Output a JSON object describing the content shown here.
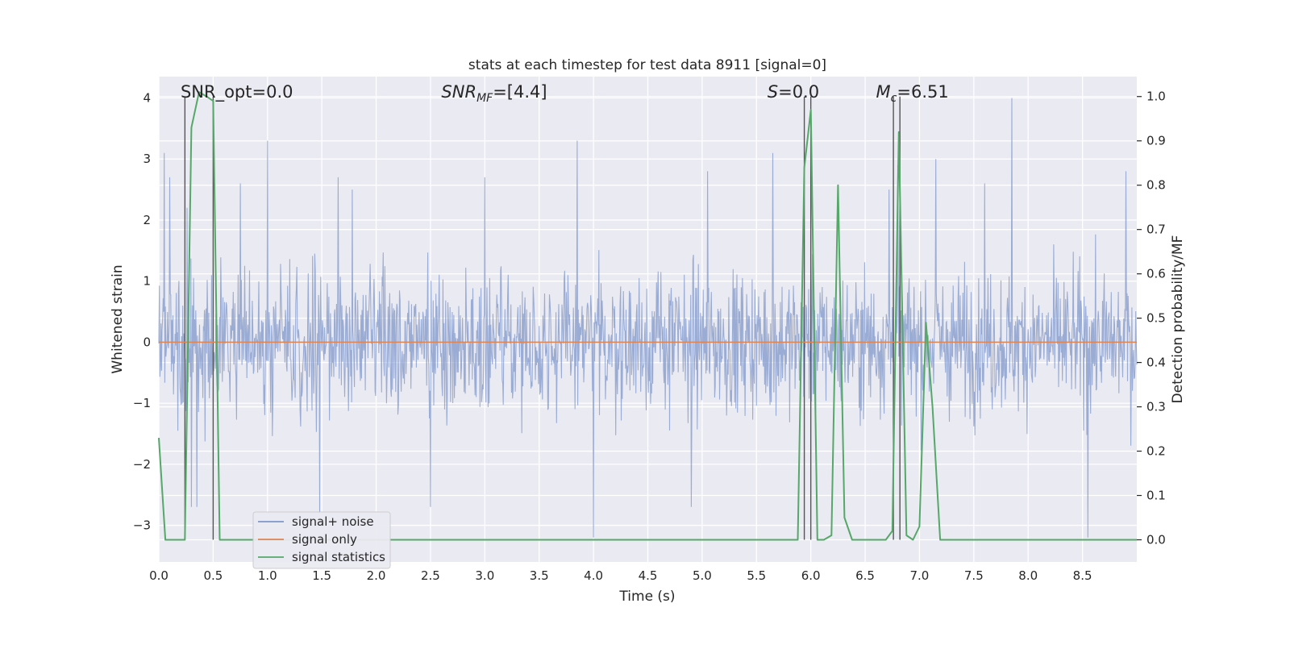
{
  "chart_data": {
    "type": "line",
    "title": "stats at each timestep for test data 8911 [signal=0]",
    "xlabel": "Time (s)",
    "ylabel_left": "Whitened strain",
    "ylabel_right": "Detection probability/MF",
    "xlim": [
      0,
      9
    ],
    "ylim_left": [
      -3.6,
      4.35
    ],
    "ylim_right": [
      -0.05,
      1.045
    ],
    "x_ticks": [
      0.0,
      0.5,
      1.0,
      1.5,
      2.0,
      2.5,
      3.0,
      3.5,
      4.0,
      4.5,
      5.0,
      5.5,
      6.0,
      6.5,
      7.0,
      7.5,
      8.0,
      8.5
    ],
    "x_tick_labels": [
      "0.0",
      "0.5",
      "1.0",
      "1.5",
      "2.0",
      "2.5",
      "3.0",
      "3.5",
      "4.0",
      "4.5",
      "5.0",
      "5.5",
      "6.0",
      "6.5",
      "7.0",
      "7.5",
      "8.0",
      "8.5"
    ],
    "y_left_ticks": [
      4,
      3,
      2,
      1,
      0,
      -1,
      -2,
      -3
    ],
    "y_left_tick_labels": [
      "4",
      "3",
      "2",
      "1",
      "0",
      "−1",
      "−2",
      "−3"
    ],
    "y_right_ticks": [
      1.0,
      0.9,
      0.8,
      0.7,
      0.6,
      0.5,
      0.4,
      0.3,
      0.2,
      0.1,
      0.0
    ],
    "y_right_tick_labels": [
      "1.0",
      "0.9",
      "0.8",
      "0.7",
      "0.6",
      "0.5",
      "0.4",
      "0.3",
      "0.2",
      "0.1",
      "0.0"
    ],
    "grid": true,
    "legend_placement": "lower-left",
    "annotations": [
      {
        "text": "SNR_opt=0.0",
        "x": 0.2
      },
      {
        "text": "SNR_MF=[4.4]",
        "x": 2.6
      },
      {
        "text": "S=0.0",
        "x": 5.6
      },
      {
        "text": "M_c=6.51",
        "x": 6.6
      }
    ],
    "vertical_markers": [
      0.24,
      0.5,
      5.94,
      6.0,
      6.76,
      6.82
    ],
    "series": [
      {
        "name": "signal+ noise",
        "axis": "left",
        "color": "#7f97c9",
        "noise_envelope": {
          "typical_amplitude": 1.1,
          "max": 4.0,
          "min": -3.2
        },
        "spikes": [
          [
            0.05,
            3.1
          ],
          [
            0.1,
            2.7
          ],
          [
            0.26,
            2.2
          ],
          [
            0.3,
            -2.7
          ],
          [
            0.35,
            -2.7
          ],
          [
            0.75,
            2.6
          ],
          [
            1.0,
            3.3
          ],
          [
            1.48,
            -2.8
          ],
          [
            1.65,
            2.7
          ],
          [
            1.78,
            2.5
          ],
          [
            2.5,
            -2.7
          ],
          [
            3.0,
            2.7
          ],
          [
            3.85,
            3.3
          ],
          [
            4.0,
            -3.2
          ],
          [
            4.9,
            -2.7
          ],
          [
            5.05,
            2.8
          ],
          [
            5.65,
            3.1
          ],
          [
            6.72,
            2.5
          ],
          [
            6.8,
            2.9
          ],
          [
            7.15,
            3.0
          ],
          [
            7.6,
            2.6
          ],
          [
            7.85,
            4.0
          ],
          [
            8.55,
            -3.2
          ],
          [
            8.9,
            2.8
          ]
        ]
      },
      {
        "name": "signal only",
        "axis": "left",
        "color": "#dd8452",
        "x": [
          0,
          9
        ],
        "y": [
          0,
          0
        ]
      },
      {
        "name": "signal statistics",
        "axis": "right",
        "color": "#55a868",
        "x": [
          0.0,
          0.06,
          0.24,
          0.3,
          0.37,
          0.44,
          0.5,
          0.56,
          5.88,
          5.94,
          6.0,
          6.06,
          6.12,
          6.19,
          6.25,
          6.31,
          6.38,
          6.69,
          6.75,
          6.81,
          6.88,
          6.94,
          7.0,
          7.06,
          7.12,
          7.19,
          9.0
        ],
        "y": [
          0.23,
          0.0,
          0.0,
          0.93,
          1.01,
          1.0,
          0.99,
          0.0,
          0.0,
          0.84,
          0.97,
          0.0,
          0.0,
          0.01,
          0.8,
          0.05,
          0.0,
          0.0,
          0.02,
          0.92,
          0.01,
          0.0,
          0.03,
          0.49,
          0.3,
          0.0,
          0.0
        ]
      }
    ]
  }
}
